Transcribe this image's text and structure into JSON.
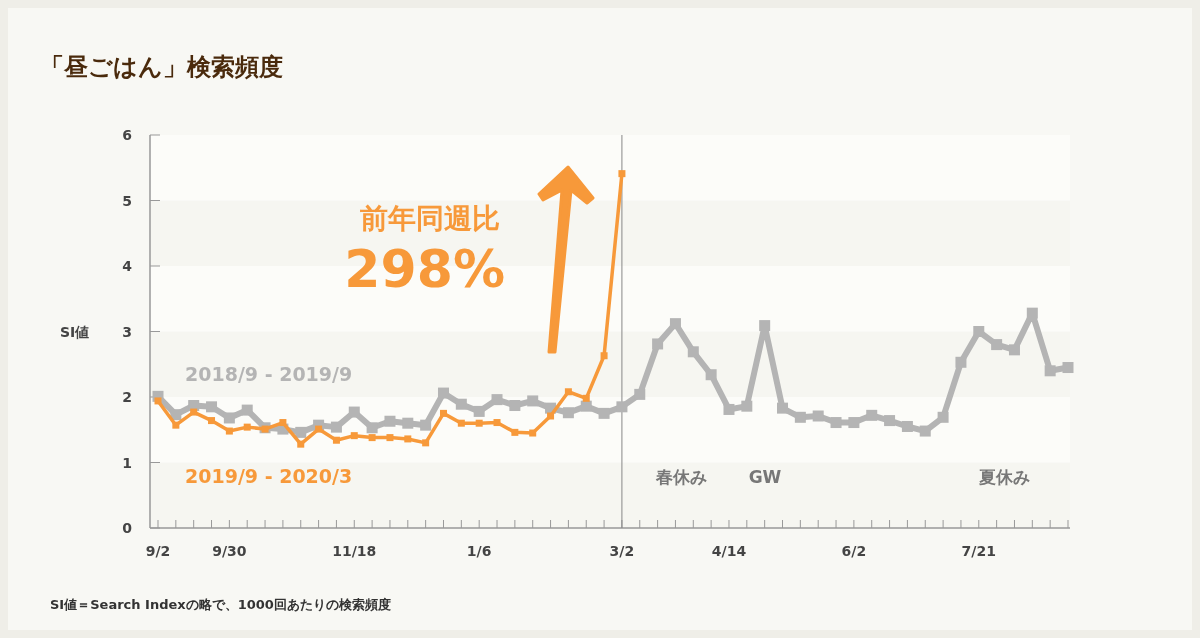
{
  "chart_data": {
    "type": "line",
    "title": "「昼ごはん」検索頻度",
    "ylabel": "SI値",
    "categories": [
      "9/2",
      null,
      null,
      null,
      "9/30",
      null,
      null,
      null,
      null,
      null,
      null,
      "11/18",
      null,
      null,
      null,
      null,
      null,
      null,
      "1/6",
      null,
      null,
      null,
      null,
      null,
      null,
      null,
      "3/2",
      null,
      null,
      null,
      null,
      null,
      "4/14",
      null,
      null,
      null,
      null,
      null,
      null,
      "6/2",
      null,
      null,
      null,
      null,
      null,
      null,
      "7/21",
      null,
      null,
      null,
      null,
      null
    ],
    "series": [
      {
        "name": "2018/9 - 2019/9",
        "color": "#b4b4b4",
        "values": [
          2.01,
          1.73,
          1.87,
          1.85,
          1.68,
          1.8,
          1.53,
          1.51,
          1.46,
          1.57,
          1.54,
          1.77,
          1.53,
          1.63,
          1.6,
          1.57,
          2.06,
          1.89,
          1.78,
          1.96,
          1.87,
          1.94,
          1.83,
          1.76,
          1.86,
          1.75,
          1.85,
          2.04,
          2.81,
          3.12,
          2.69,
          2.34,
          1.81,
          1.86,
          3.09,
          1.83,
          1.69,
          1.71,
          1.61,
          1.61,
          1.72,
          1.64,
          1.55,
          1.48,
          1.69,
          2.53,
          3.0,
          2.8,
          2.72,
          3.28,
          2.4,
          2.45
        ]
      },
      {
        "name": "2019/9 - 2020/3",
        "color": "#f7993a",
        "values": [
          1.94,
          1.57,
          1.77,
          1.64,
          1.48,
          1.54,
          1.51,
          1.61,
          1.28,
          1.51,
          1.34,
          1.41,
          1.38,
          1.38,
          1.36,
          1.3,
          1.75,
          1.6,
          1.6,
          1.61,
          1.46,
          1.45,
          1.71,
          2.08,
          1.98,
          2.63,
          5.41,
          null,
          null,
          null,
          null,
          null,
          null,
          null,
          null,
          null,
          null,
          null,
          null,
          null,
          null,
          null,
          null,
          null,
          null,
          null,
          null,
          null,
          null,
          null,
          null,
          null
        ]
      }
    ],
    "ylim": [
      0,
      6
    ],
    "yticks": [
      0,
      1,
      2,
      3,
      4,
      5,
      6
    ],
    "marker": "square",
    "line_style": "solid",
    "legend": false,
    "ref_lines": [
      {
        "axis": "x",
        "value": "3/2",
        "color": "#888888"
      }
    ],
    "annotations": [
      "前年同週比",
      "298%",
      "春休み",
      "GW",
      "夏休み",
      "SI値＝Search Indexの略で、1000回あたりの検索頻度"
    ]
  }
}
